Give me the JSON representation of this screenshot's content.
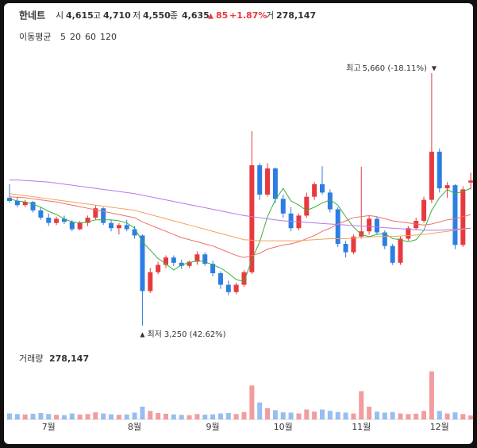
{
  "header": {
    "name": "한네트",
    "items": [
      {
        "label": "시",
        "value": "4,615"
      },
      {
        "label": "고",
        "value": "4,710"
      },
      {
        "label": "저",
        "value": "4,550"
      },
      {
        "label": "종",
        "value": "4,635"
      }
    ],
    "change": "85",
    "change_pct": "+1.87%",
    "volume_label": "거",
    "volume": "278,147"
  },
  "chart_data": {
    "type": "candlestick",
    "legend_title": "이동평균",
    "up_color": "#e8393f",
    "down_color": "#2d7ee3",
    "categories": [
      null,
      null,
      null,
      null,
      null,
      "7월",
      null,
      null,
      null,
      null,
      null,
      null,
      null,
      null,
      null,
      null,
      "8월",
      null,
      null,
      null,
      null,
      null,
      null,
      null,
      null,
      null,
      "9월",
      null,
      null,
      null,
      null,
      null,
      null,
      null,
      null,
      "10월",
      null,
      null,
      null,
      null,
      null,
      null,
      null,
      null,
      null,
      "11월",
      null,
      null,
      null,
      null,
      null,
      null,
      null,
      null,
      null,
      "12월",
      null,
      null,
      null,
      null
    ],
    "open": [
      4470,
      4440,
      4400,
      4430,
      4350,
      4280,
      4230,
      4270,
      4240,
      4170,
      4230,
      4280,
      4370,
      4230,
      4180,
      4210,
      4170,
      4110,
      3580,
      3760,
      3830,
      3900,
      3850,
      3820,
      3860,
      3930,
      3840,
      3750,
      3640,
      3570,
      3640,
      3760,
      4780,
      4500,
      4750,
      4460,
      4320,
      4180,
      4300,
      4480,
      4600,
      4520,
      4360,
      4030,
      3950,
      4100,
      4150,
      4270,
      4140,
      4010,
      3850,
      4080,
      4180,
      4250,
      4450,
      4910,
      4560,
      4590,
      4020,
      4615
    ],
    "high": [
      4600,
      4480,
      4450,
      4440,
      4380,
      4320,
      4290,
      4300,
      4260,
      4250,
      4300,
      4400,
      4380,
      4260,
      4230,
      4260,
      4200,
      4120,
      3800,
      3860,
      3920,
      3920,
      3880,
      3870,
      3960,
      3950,
      3870,
      3770,
      3680,
      3660,
      3780,
      5107,
      4800,
      4800,
      4760,
      4500,
      4380,
      4320,
      4520,
      4620,
      4770,
      4550,
      4380,
      4060,
      4120,
      4766,
      4300,
      4290,
      4160,
      4030,
      4100,
      4200,
      4280,
      4480,
      5660,
      4940,
      4620,
      4600,
      4580,
      4710
    ],
    "low": [
      4420,
      4380,
      4380,
      4330,
      4260,
      4200,
      4210,
      4220,
      4150,
      4160,
      4200,
      4260,
      4210,
      4150,
      4120,
      4150,
      4080,
      3250,
      3560,
      3740,
      3800,
      3820,
      3790,
      3800,
      3830,
      3820,
      3720,
      3600,
      3540,
      3550,
      3620,
      3740,
      4450,
      4480,
      4420,
      4280,
      4150,
      4160,
      4280,
      4450,
      4500,
      4330,
      4000,
      3900,
      3930,
      4080,
      4120,
      4120,
      3980,
      3830,
      3830,
      4060,
      4160,
      4230,
      4420,
      4520,
      4470,
      3980,
      4000,
      4550
    ],
    "close": [
      4440,
      4400,
      4430,
      4350,
      4280,
      4230,
      4270,
      4240,
      4170,
      4230,
      4280,
      4370,
      4230,
      4180,
      4210,
      4170,
      4110,
      3580,
      3760,
      3830,
      3900,
      3850,
      3820,
      3860,
      3930,
      3840,
      3750,
      3640,
      3570,
      3640,
      3760,
      4780,
      4500,
      4750,
      4460,
      4320,
      4180,
      4300,
      4480,
      4600,
      4520,
      4360,
      4030,
      3950,
      4100,
      4150,
      4270,
      4140,
      4010,
      3850,
      4080,
      4180,
      4250,
      4450,
      4910,
      4560,
      4590,
      4020,
      4550,
      4635
    ],
    "volume": [
      420000,
      380000,
      350000,
      400000,
      450000,
      380000,
      330000,
      300000,
      420000,
      350000,
      380000,
      500000,
      420000,
      360000,
      330000,
      350000,
      480000,
      900000,
      600000,
      450000,
      400000,
      350000,
      320000,
      300000,
      380000,
      340000,
      360000,
      420000,
      450000,
      380000,
      520000,
      2400000,
      1200000,
      800000,
      650000,
      500000,
      480000,
      420000,
      700000,
      550000,
      700000,
      600000,
      520000,
      480000,
      420000,
      2000000,
      900000,
      550000,
      480000,
      520000,
      420000,
      380000,
      400000,
      600000,
      3400000,
      600000,
      420000,
      500000,
      380000,
      278147
    ],
    "series": [
      {
        "name": "5",
        "color": "#3cae3c",
        "values": [
          4460,
          4440,
          4430,
          4410,
          4380,
          4340,
          4310,
          4270,
          4240,
          4230,
          4240,
          4260,
          4260,
          4260,
          4250,
          4230,
          4180,
          4050,
          3970,
          3890,
          3840,
          3780,
          3830,
          3850,
          3870,
          3860,
          3830,
          3800,
          3750,
          3690,
          3670,
          3880,
          4050,
          4290,
          4450,
          4560,
          4440,
          4400,
          4350,
          4380,
          4420,
          4450,
          4400,
          4290,
          4190,
          4120,
          4100,
          4120,
          4130,
          4080,
          4070,
          4050,
          4070,
          4160,
          4350,
          4470,
          4550,
          4510,
          4530,
          4560
        ]
      },
      {
        "name": "20",
        "color": "#f0706a",
        "values": [
          4480,
          4475,
          4470,
          4460,
          4450,
          4440,
          4430,
          4415,
          4400,
          4385,
          4370,
          4355,
          4340,
          4325,
          4310,
          4295,
          4280,
          4240,
          4210,
          4180,
          4150,
          4120,
          4090,
          4070,
          4050,
          4030,
          4010,
          3980,
          3950,
          3920,
          3900,
          3920,
          3940,
          3980,
          4000,
          4020,
          4030,
          4050,
          4080,
          4110,
          4150,
          4180,
          4220,
          4250,
          4280,
          4290,
          4300,
          4290,
          4270,
          4250,
          4240,
          4230,
          4220,
          4210,
          4220,
          4240,
          4260,
          4270,
          4290,
          4310
        ]
      },
      {
        "name": "60",
        "color": "#f2a25e",
        "values": [
          4510,
          4500,
          4490,
          4480,
          4470,
          4460,
          4450,
          4440,
          4430,
          4420,
          4410,
          4400,
          4390,
          4380,
          4370,
          4360,
          4350,
          4330,
          4310,
          4290,
          4270,
          4250,
          4230,
          4210,
          4190,
          4170,
          4150,
          4130,
          4110,
          4090,
          4070,
          4065,
          4060,
          4060,
          4060,
          4060,
          4060,
          4060,
          4065,
          4070,
          4075,
          4080,
          4080,
          4080,
          4085,
          4090,
          4095,
          4100,
          4100,
          4100,
          4105,
          4110,
          4115,
          4120,
          4130,
          4140,
          4150,
          4160,
          4170,
          4180
        ]
      },
      {
        "name": "120",
        "color": "#b47ae8",
        "values": [
          4640,
          4640,
          4635,
          4630,
          4625,
          4620,
          4610,
          4600,
          4590,
          4580,
          4570,
          4560,
          4550,
          4540,
          4530,
          4520,
          4510,
          4495,
          4480,
          4465,
          4450,
          4435,
          4420,
          4405,
          4390,
          4375,
          4360,
          4345,
          4330,
          4315,
          4300,
          4290,
          4280,
          4270,
          4260,
          4250,
          4245,
          4240,
          4235,
          4230,
          4225,
          4220,
          4215,
          4210,
          4205,
          4200,
          4195,
          4190,
          4185,
          4180,
          4175,
          4170,
          4165,
          4160,
          4160,
          4160,
          4165,
          4170,
          4175,
          4180
        ]
      }
    ],
    "ylim": [
      3098,
      6130
    ],
    "volume_ylim": [
      0,
      4500000
    ],
    "max_label": {
      "prefix": "최고",
      "text": "5,660 (-18.11%)"
    },
    "min_label": {
      "prefix": "최저",
      "text": "3,250 (42.62%)"
    },
    "volume_title": "거래량",
    "volume_value": "278,147"
  }
}
